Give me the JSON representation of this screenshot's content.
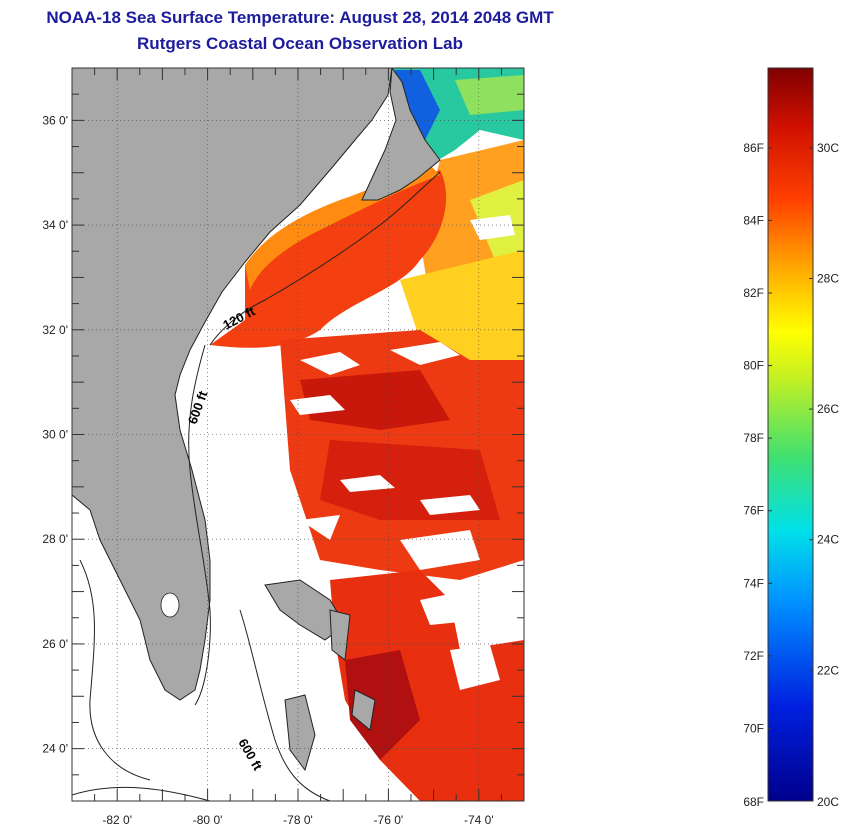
{
  "title": {
    "line1": "NOAA-18 Sea Surface Temperature:  August 28, 2014 2048 GMT",
    "line2": "Rutgers Coastal Ocean Observation Lab"
  },
  "map": {
    "lat_labels": [
      "36 0'",
      "34 0'",
      "32 0'",
      "30 0'",
      "28 0'",
      "26 0'",
      "24 0'"
    ],
    "lon_labels": [
      "-82 0'",
      "-80 0'",
      "-78 0'",
      "-76 0'",
      "-74 0'"
    ],
    "lat_values": [
      36,
      34,
      32,
      30,
      28,
      26,
      24
    ],
    "lon_values": [
      -82,
      -80,
      -78,
      -76,
      -74
    ],
    "lon_range": [
      -83,
      -73
    ],
    "lat_range": [
      23,
      37
    ],
    "contour_labels": [
      "120 ft",
      "600 ft",
      "600 ft"
    ],
    "colors": {
      "land": "#a8a8a8",
      "frame": "#333333"
    }
  },
  "colorbar": {
    "f_labels": [
      "86F",
      "84F",
      "82F",
      "80F",
      "78F",
      "76F",
      "74F",
      "72F",
      "70F",
      "68F"
    ],
    "f_values": [
      86,
      84,
      82,
      80,
      78,
      76,
      74,
      72,
      70,
      68
    ],
    "c_labels": [
      "30C",
      "28C",
      "26C",
      "24C",
      "22C",
      "20C"
    ],
    "c_values": [
      30,
      28,
      26,
      24,
      22,
      20
    ],
    "range_f": [
      68,
      88.2
    ]
  }
}
